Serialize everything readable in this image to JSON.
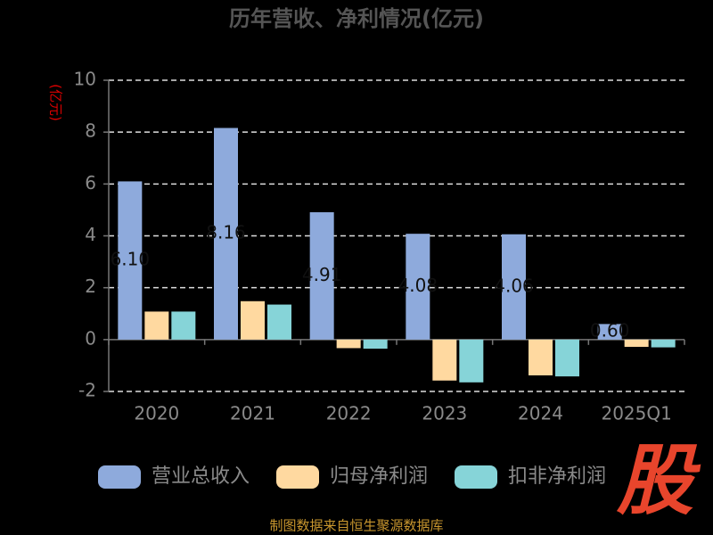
{
  "chart_data": {
    "type": "bar",
    "title": "历年营收、净利情况(亿元)",
    "y_label": "(亿元)",
    "categories": [
      "2020",
      "2021",
      "2022",
      "2023",
      "2024",
      "2025Q1"
    ],
    "series": [
      {
        "name": "营业总收入",
        "color": "#8eaadc",
        "values": [
          6.1,
          8.16,
          4.91,
          4.08,
          4.06,
          0.6
        ],
        "value_labels": [
          "6.10",
          "8.16",
          "4.91",
          "4.08",
          "4.06",
          "0.60"
        ]
      },
      {
        "name": "归母净利润",
        "color": "#ffd9a0",
        "values": [
          1.08,
          1.48,
          -0.33,
          -1.58,
          -1.38,
          -0.28
        ]
      },
      {
        "name": "扣非净利润",
        "color": "#86d4d8",
        "values": [
          1.08,
          1.35,
          -0.35,
          -1.65,
          -1.42,
          -0.3
        ]
      }
    ],
    "ylim": [
      -2,
      10
    ],
    "yticks": [
      -2,
      0,
      2,
      4,
      6,
      8,
      10
    ],
    "grid": true,
    "legend": "bottom",
    "logo": "股",
    "source": "制图数据来自恒生聚源数据库"
  }
}
